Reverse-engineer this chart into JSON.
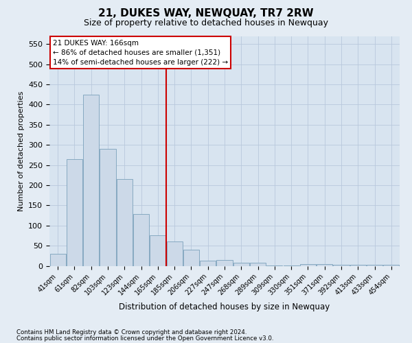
{
  "title": "21, DUKES WAY, NEWQUAY, TR7 2RW",
  "subtitle": "Size of property relative to detached houses in Newquay",
  "xlabel": "Distribution of detached houses by size in Newquay",
  "ylabel": "Number of detached properties",
  "bar_labels": [
    "41sqm",
    "61sqm",
    "82sqm",
    "103sqm",
    "123sqm",
    "144sqm",
    "165sqm",
    "185sqm",
    "206sqm",
    "227sqm",
    "247sqm",
    "268sqm",
    "289sqm",
    "309sqm",
    "330sqm",
    "351sqm",
    "371sqm",
    "392sqm",
    "413sqm",
    "433sqm",
    "454sqm"
  ],
  "bar_values": [
    30,
    265,
    425,
    290,
    215,
    128,
    76,
    60,
    40,
    13,
    15,
    8,
    8,
    1,
    1,
    5,
    5,
    3,
    3,
    2,
    2
  ],
  "bar_color": "#ccd9e8",
  "bar_edge_color": "#7aa0bb",
  "vline_color": "#cc0000",
  "annotation_text": "21 DUKES WAY: 166sqm\n← 86% of detached houses are smaller (1,351)\n14% of semi-detached houses are larger (222) →",
  "annotation_box_color": "#ffffff",
  "annotation_box_edge": "#cc0000",
  "ylim": [
    0,
    570
  ],
  "yticks": [
    0,
    50,
    100,
    150,
    200,
    250,
    300,
    350,
    400,
    450,
    500,
    550
  ],
  "footer1": "Contains HM Land Registry data © Crown copyright and database right 2024.",
  "footer2": "Contains public sector information licensed under the Open Government Licence v3.0.",
  "grid_color": "#b8c8dc",
  "bg_color": "#e4ecf4",
  "plot_bg_color": "#d8e4f0",
  "title_fontsize": 11,
  "subtitle_fontsize": 9
}
